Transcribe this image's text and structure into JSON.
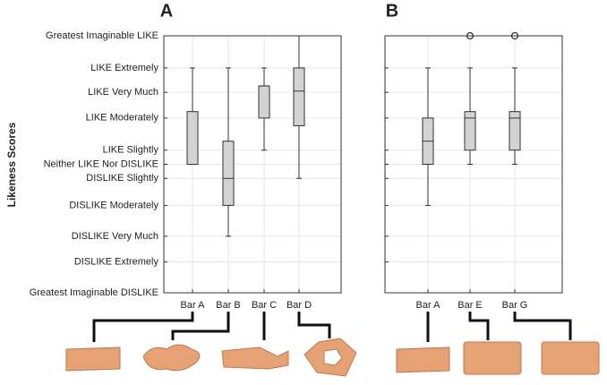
{
  "chart_data": [
    {
      "type": "box",
      "title": "A",
      "ylabel": "Likeness Scores",
      "categories": [
        "Bar A",
        "Bar B",
        "Bar C",
        "Bar D"
      ],
      "boxes": [
        {
          "min": 0,
          "q1": 0,
          "median": 0,
          "q3": 41,
          "max": 75
        },
        {
          "min": -56,
          "q1": -32,
          "median": -11,
          "q3": 18,
          "max": 75
        },
        {
          "min": 11,
          "q1": 36,
          "median": 61,
          "q3": 61,
          "max": 75
        },
        {
          "min": -11,
          "q1": 30,
          "median": 57,
          "q3": 75,
          "max": 100
        }
      ],
      "color": "#d3d3d3",
      "grid": true,
      "ylim": [
        -100,
        100
      ],
      "yticks": [
        {
          "value": -100,
          "label": "Greatest Imaginable DISLIKE"
        },
        {
          "value": -76,
          "label": "DISLIKE Extremely"
        },
        {
          "value": -56,
          "label": "DISLIKE Very Much"
        },
        {
          "value": -32,
          "label": "DISLIKE Moderately"
        },
        {
          "value": -11,
          "label": "DISLIKE Slightly"
        },
        {
          "value": 0,
          "label": "Neither LIKE Nor DISLIKE"
        },
        {
          "value": 11,
          "label": "LIKE Slightly"
        },
        {
          "value": 36,
          "label": "LIKE Moderately"
        },
        {
          "value": 56,
          "label": "LIKE Very Much"
        },
        {
          "value": 75,
          "label": "LIKE Extremely"
        },
        {
          "value": 100,
          "label": "Greatest Imaginable LIKE"
        }
      ]
    },
    {
      "type": "box",
      "title": "B",
      "categories": [
        "Bar A",
        "Bar E",
        "Bar G"
      ],
      "boxes": [
        {
          "min": -32,
          "q1": 0,
          "median": 18,
          "q3": 36,
          "max": 75
        },
        {
          "min": 0,
          "q1": 11,
          "median": 36,
          "q3": 41,
          "max": 75,
          "outliers": [
            100
          ]
        },
        {
          "min": 0,
          "q1": 11,
          "median": 36,
          "q3": 41,
          "max": 75,
          "outliers": [
            100
          ]
        }
      ],
      "color": "#d3d3d3",
      "grid": true,
      "ylim": [
        -100,
        100
      ]
    }
  ]
}
